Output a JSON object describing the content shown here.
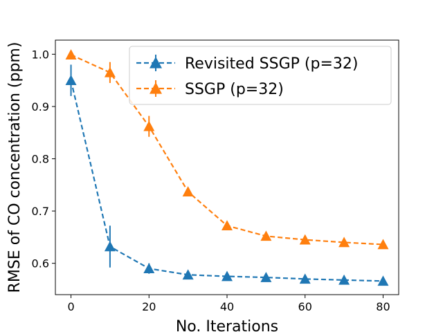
{
  "chart_data": {
    "type": "line",
    "title": "",
    "xlabel": "No. Iterations",
    "ylabel": "RMSE of CO concentration (ppm)",
    "xlim": [
      -4,
      84
    ],
    "ylim": [
      0.54,
      1.027
    ],
    "xticks": [
      0,
      20,
      40,
      60,
      80
    ],
    "xtick_labels": [
      "0",
      "20",
      "40",
      "60",
      "80"
    ],
    "yticks": [
      0.6,
      0.7,
      0.8,
      0.9,
      1.0
    ],
    "ytick_labels": [
      "0.6",
      "0.7",
      "0.8",
      "0.9",
      "1.0"
    ],
    "grid": false,
    "legend_position": "top-right",
    "x": [
      0,
      10,
      20,
      30,
      40,
      50,
      60,
      70,
      80
    ],
    "series": [
      {
        "name": "Revisited SSGP (p=32)",
        "color": "#1f77b4",
        "marker": "triangle-up",
        "linestyle": "dashed",
        "values": [
          0.95,
          0.632,
          0.59,
          0.578,
          0.575,
          0.573,
          0.57,
          0.568,
          0.566
        ],
        "errors": [
          0.03,
          0.04,
          0.01,
          0.006,
          0.005,
          0.005,
          0.004,
          0.004,
          0.004
        ]
      },
      {
        "name": "SSGP (p=32)",
        "color": "#ff7f0e",
        "marker": "triangle-up",
        "linestyle": "dashed",
        "values": [
          0.999,
          0.965,
          0.862,
          0.737,
          0.672,
          0.652,
          0.645,
          0.64,
          0.636
        ],
        "errors": [
          0.003,
          0.02,
          0.02,
          0.007,
          0.004,
          0.003,
          0.003,
          0.003,
          0.003
        ]
      }
    ]
  }
}
